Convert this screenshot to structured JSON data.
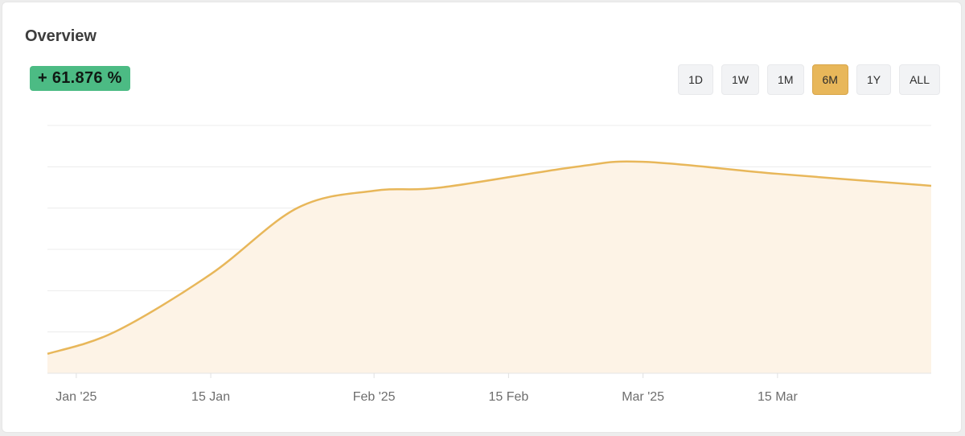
{
  "header": {
    "title": "Overview"
  },
  "change_badge": {
    "text": "+ 61.876 %"
  },
  "ranges": [
    {
      "label": "1D",
      "active": false
    },
    {
      "label": "1W",
      "active": false
    },
    {
      "label": "1M",
      "active": false
    },
    {
      "label": "6M",
      "active": true
    },
    {
      "label": "1Y",
      "active": false
    },
    {
      "label": "ALL",
      "active": false
    }
  ],
  "colors": {
    "line": "#e8b75a",
    "fill": "#fdf3e6",
    "badge": "#4cbb84",
    "active_range": "#e8b75a"
  },
  "chart_data": {
    "type": "area",
    "title": "",
    "xlabel": "",
    "ylabel": "",
    "x_domain": [
      "2024-12-29",
      "2025-03-31"
    ],
    "x_ticks": [
      {
        "date": "2025-01-01",
        "label": "Jan '25"
      },
      {
        "date": "2025-01-15",
        "label": "15 Jan"
      },
      {
        "date": "2025-02-01",
        "label": "Feb '25"
      },
      {
        "date": "2025-02-15",
        "label": "15 Feb"
      },
      {
        "date": "2025-03-01",
        "label": "Mar '25"
      },
      {
        "date": "2025-03-15",
        "label": "15 Mar"
      }
    ],
    "y_axis_labels": false,
    "y_gridlines": 6,
    "grid": true,
    "legend": "none",
    "series": [
      {
        "x": [
          "2024-12-29",
          "2025-01-05",
          "2025-01-15",
          "2025-01-24",
          "2025-02-01",
          "2025-02-08",
          "2025-02-22",
          "2025-03-01",
          "2025-03-15",
          "2025-03-31"
        ],
        "y": [
          4.7,
          10,
          24,
          40,
          44.2,
          45,
          50,
          51.2,
          48.3,
          45.4
        ]
      }
    ],
    "ylim": [
      0,
      60
    ]
  }
}
